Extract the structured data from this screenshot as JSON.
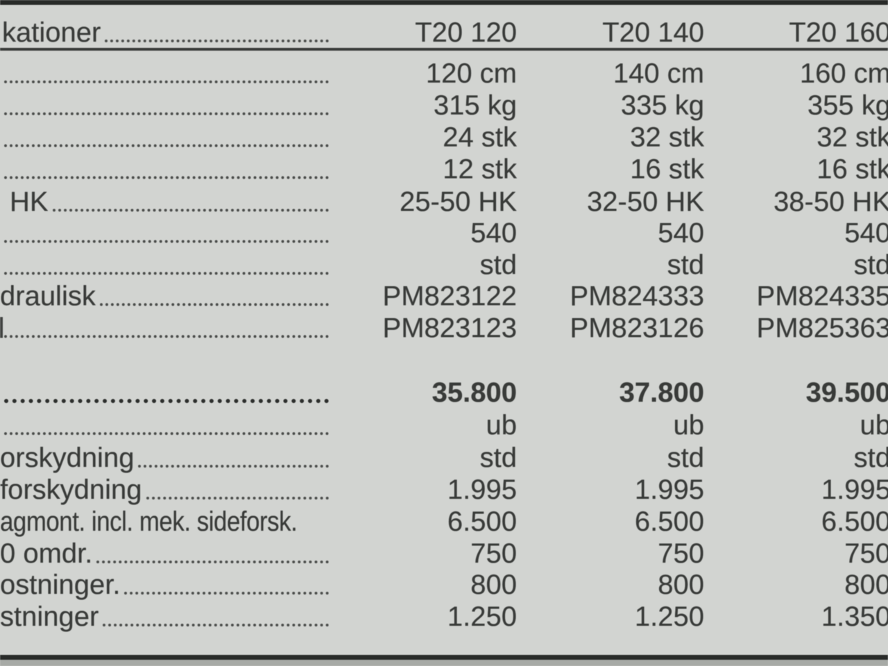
{
  "document": {
    "type": "scanned-spec-price-table",
    "colors": {
      "background": "#d2d4d1",
      "text": "#3a3c3a",
      "border_bars": "#2b2d2b",
      "bottom_strip": "#a6a9a5"
    }
  },
  "table": {
    "header": {
      "label_fragment": "kationer",
      "columns": [
        "T20 120",
        "T20 140",
        "T20 160"
      ]
    },
    "rows": [
      {
        "label": "",
        "dots": true,
        "bold": false,
        "sliver": false,
        "values": [
          "120 cm",
          "140 cm",
          "160 cm"
        ]
      },
      {
        "label": "",
        "dots": true,
        "bold": false,
        "sliver": false,
        "values": [
          "315 kg",
          "335 kg",
          "355 kg"
        ]
      },
      {
        "label": "",
        "dots": true,
        "bold": false,
        "sliver": false,
        "values": [
          "24 stk",
          "32 stk",
          "32 stk"
        ]
      },
      {
        "label": "",
        "dots": true,
        "bold": false,
        "sliver": false,
        "values": [
          "12 stk",
          "16 stk",
          "16 stk"
        ]
      },
      {
        "label": "HK",
        "dots": true,
        "bold": false,
        "sliver": false,
        "values": [
          "25-50 HK",
          "32-50 HK",
          "38-50 HK"
        ]
      },
      {
        "label": "",
        "dots": true,
        "bold": false,
        "sliver": false,
        "values": [
          "540",
          "540",
          "540"
        ]
      },
      {
        "label": "",
        "dots": true,
        "bold": false,
        "sliver": false,
        "values": [
          "std",
          "std",
          "std"
        ]
      },
      {
        "label": "draulisk",
        "dots": true,
        "bold": false,
        "sliver": false,
        "values": [
          "PM823122",
          "PM824333",
          "PM824335"
        ]
      },
      {
        "label": "",
        "dots": true,
        "bold": false,
        "sliver": true,
        "values": [
          "PM823123",
          "PM823126",
          "PM825363"
        ]
      },
      {
        "label": "",
        "dots": true,
        "bold": true,
        "sliver": false,
        "values": [
          "35.800",
          "37.800",
          "39.500"
        ]
      },
      {
        "label": "",
        "dots": true,
        "bold": false,
        "sliver": false,
        "values": [
          "ub",
          "ub",
          "ub"
        ]
      },
      {
        "label": "orskydning",
        "dots": true,
        "bold": false,
        "sliver": false,
        "values": [
          "std",
          "std",
          "std"
        ]
      },
      {
        "label": "forskydning",
        "dots": true,
        "bold": false,
        "sliver": false,
        "values": [
          "1.995",
          "1.995",
          "1.995"
        ]
      },
      {
        "label": "agmont. incl. mek. sideforsk.",
        "dots": false,
        "bold": false,
        "sliver": false,
        "values": [
          "6.500",
          "6.500",
          "6.500"
        ]
      },
      {
        "label": "0 omdr.",
        "dots": true,
        "bold": false,
        "sliver": false,
        "values": [
          "750",
          "750",
          "750"
        ]
      },
      {
        "label": "ostninger.",
        "dots": true,
        "bold": false,
        "sliver": false,
        "values": [
          "800",
          "800",
          "800"
        ]
      },
      {
        "label": "stninger",
        "dots": true,
        "bold": false,
        "sliver": false,
        "values": [
          "1.250",
          "1.250",
          "1.350"
        ]
      }
    ]
  }
}
